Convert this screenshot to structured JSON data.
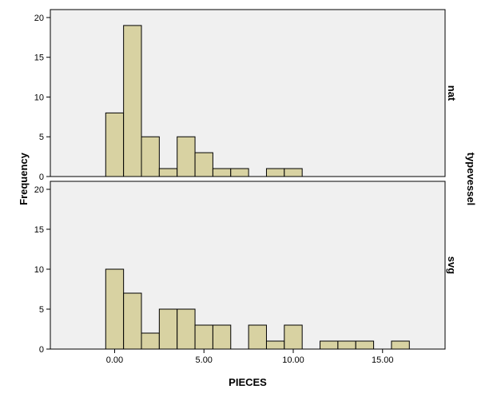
{
  "chart_data": {
    "type": "bar",
    "title": "",
    "xlabel": "PIECES",
    "ylabel": "Frequency",
    "panel_label": "typevessel",
    "xlim": [
      -3.6,
      18.5
    ],
    "ylim": [
      0,
      21
    ],
    "bin_width": 1,
    "x_ticks": [
      0,
      5,
      10,
      15
    ],
    "x_tick_labels": [
      "0.00",
      "5.00",
      "10.00",
      "15.00"
    ],
    "y_ticks": [
      0,
      5,
      10,
      15,
      20
    ],
    "y_tick_labels": [
      "0",
      "5",
      "10",
      "15",
      "20"
    ],
    "grid": false,
    "colors": {
      "bar_fill": "#d8d2a2",
      "bar_stroke": "#000000",
      "panel_bg": "#f0f0f0"
    },
    "panels": [
      {
        "name": "nat",
        "bins": [
          {
            "x": 0,
            "count": 8
          },
          {
            "x": 1,
            "count": 19
          },
          {
            "x": 2,
            "count": 5
          },
          {
            "x": 3,
            "count": 1
          },
          {
            "x": 4,
            "count": 5
          },
          {
            "x": 5,
            "count": 3
          },
          {
            "x": 6,
            "count": 1
          },
          {
            "x": 7,
            "count": 1
          },
          {
            "x": 9,
            "count": 1
          },
          {
            "x": 10,
            "count": 1
          }
        ]
      },
      {
        "name": "svg",
        "bins": [
          {
            "x": 0,
            "count": 10
          },
          {
            "x": 1,
            "count": 7
          },
          {
            "x": 2,
            "count": 2
          },
          {
            "x": 3,
            "count": 5
          },
          {
            "x": 4,
            "count": 5
          },
          {
            "x": 5,
            "count": 3
          },
          {
            "x": 6,
            "count": 3
          },
          {
            "x": 8,
            "count": 3
          },
          {
            "x": 9,
            "count": 1
          },
          {
            "x": 10,
            "count": 3
          },
          {
            "x": 12,
            "count": 1
          },
          {
            "x": 13,
            "count": 1
          },
          {
            "x": 14,
            "count": 1
          },
          {
            "x": 16,
            "count": 1
          }
        ]
      }
    ]
  }
}
